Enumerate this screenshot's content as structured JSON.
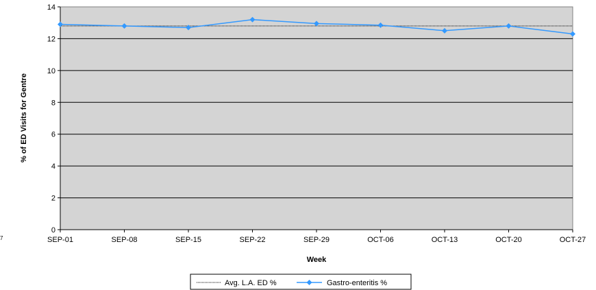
{
  "chart_data": {
    "type": "line",
    "categories": [
      "SEP-01",
      "SEP-08",
      "SEP-15",
      "SEP-22",
      "SEP-29",
      "OCT-06",
      "OCT-13",
      "OCT-20",
      "OCT-27"
    ],
    "xlabel": "Week",
    "ylabel": "% of ED Visits for Gentre",
    "ylim": [
      0,
      14
    ],
    "yticks": [
      "0",
      "2",
      "4",
      "6",
      "8",
      "10",
      "12",
      "14"
    ],
    "grid": true,
    "legend_position": "bottom-center",
    "plot_background": "#d4d4d4",
    "series": [
      {
        "name": "Avg. L.A. ED %",
        "style": "dotted",
        "color": "#000000",
        "values": [
          12.8,
          12.8,
          12.8,
          12.8,
          12.8,
          12.8,
          12.8,
          12.8,
          12.8
        ]
      },
      {
        "name": "Gastro-enteritis %",
        "style": "solid-diamond",
        "color": "#3399ff",
        "values": [
          12.9,
          12.8,
          12.7,
          13.2,
          12.95,
          12.85,
          12.5,
          12.8,
          12.3
        ]
      }
    ]
  },
  "edge_mark": "7"
}
